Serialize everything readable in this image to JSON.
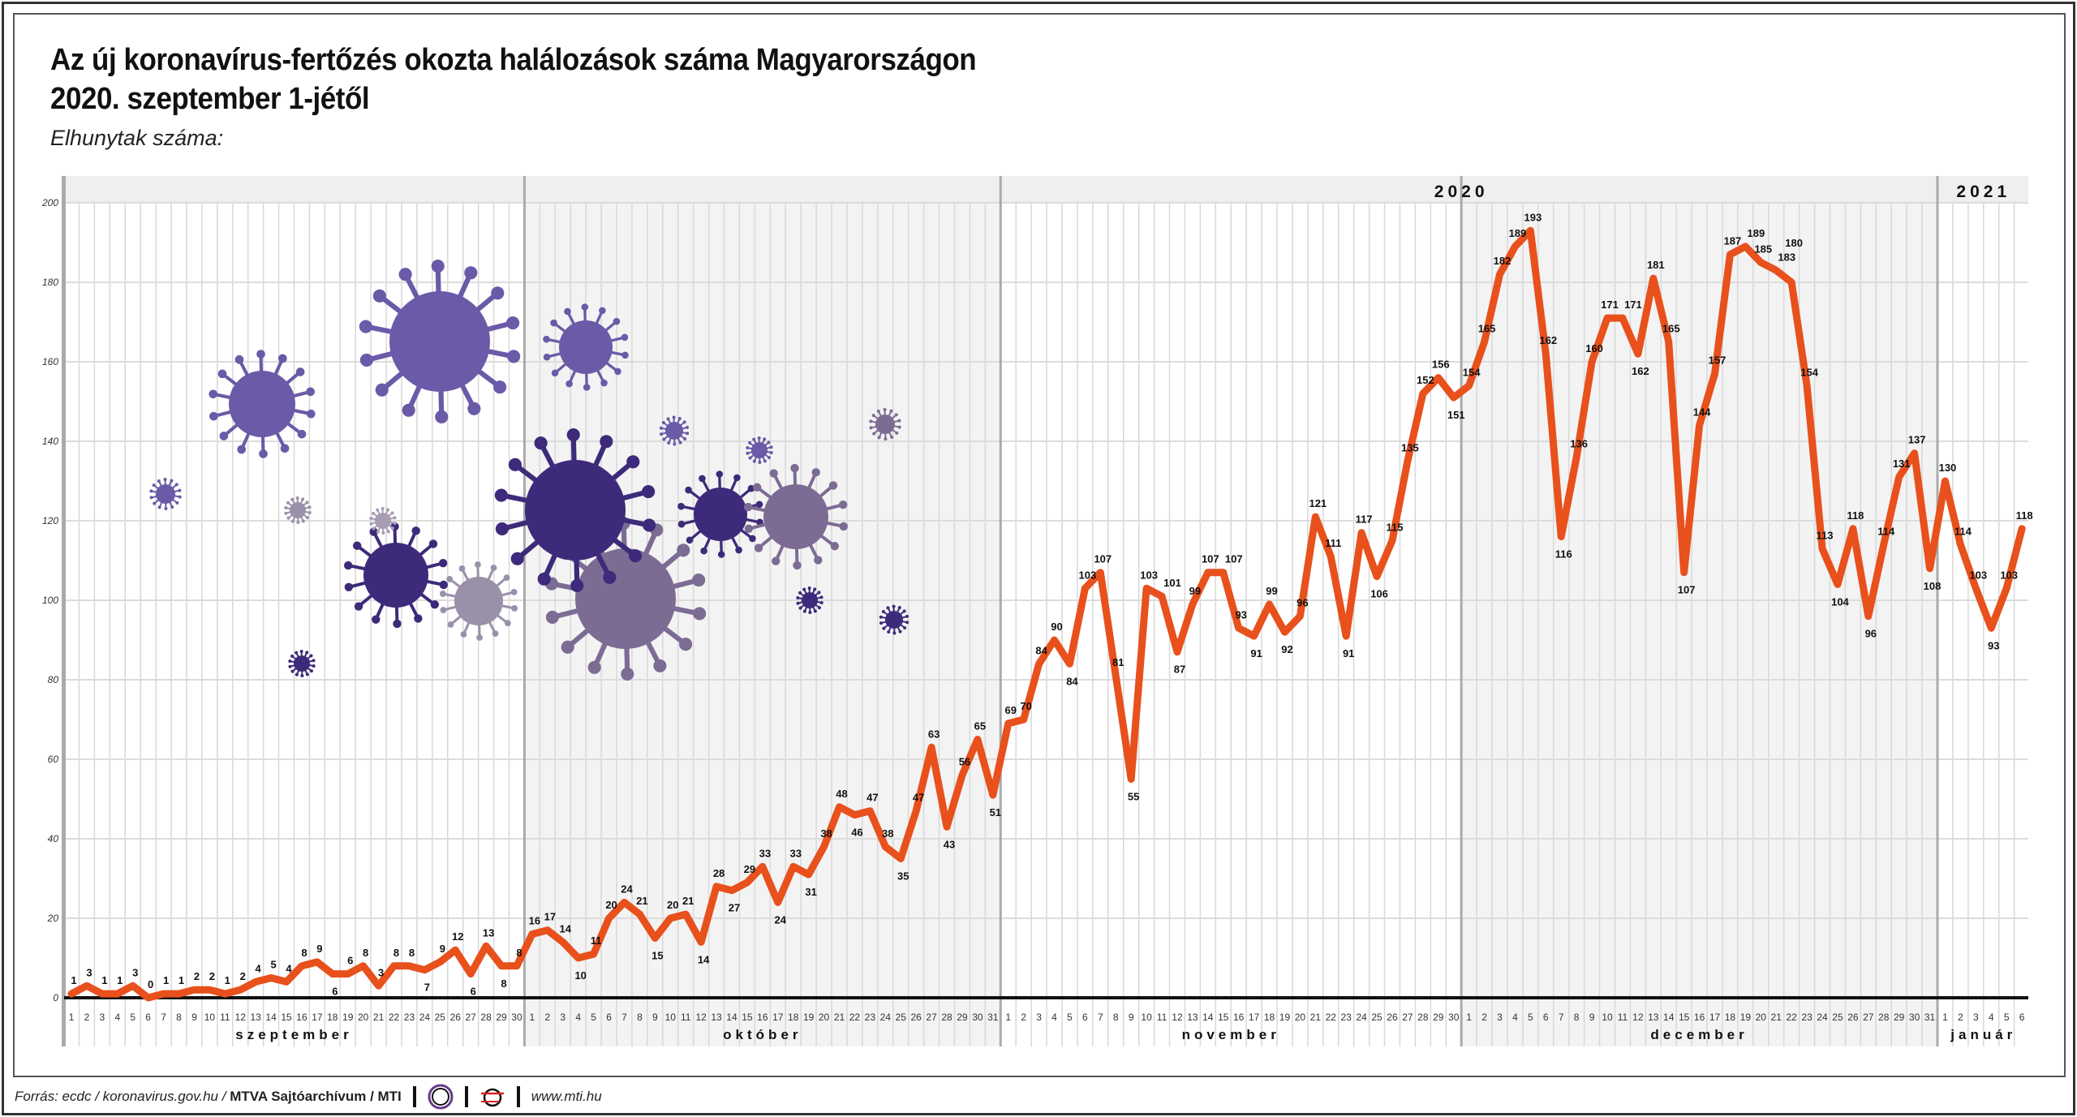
{
  "title_line1": "Az új koronavírus-fertőzés okozta halálozások száma Magyarországon",
  "title_line2": "2020. szeptember 1-jétől",
  "subtitle": "Elhunytak száma:",
  "footer": {
    "source_prefix": "Forrás: ecdc / koronavirus.gov.hu /",
    "source_bold": "MTVA Sajtóarchívum / MTI",
    "logo1_text": "MTVA",
    "website": "www.mti.hu"
  },
  "colors": {
    "line": "#e8501c",
    "virus_light": "#6a5aa8",
    "virus_dark": "#3d2a7a",
    "virus_grey": "#7c6c94",
    "shade": "#f3f3f3"
  },
  "chart_data": {
    "type": "line",
    "title": "Az új koronavírus-fertőzés okozta halálozások száma Magyarországon 2020. szeptember 1-jétől",
    "ylabel": "Elhunytak száma:",
    "ylim": [
      0,
      200
    ],
    "yticks": [
      0,
      20,
      40,
      60,
      80,
      100,
      120,
      140,
      160,
      180,
      200
    ],
    "grid": true,
    "years": [
      {
        "label": "2020",
        "from_month": 0,
        "to_month": 3
      },
      {
        "label": "2021",
        "from_month": 4,
        "to_month": 4
      }
    ],
    "months": [
      {
        "label": "szeptember",
        "days": 30,
        "shaded": false
      },
      {
        "label": "október",
        "days": 31,
        "shaded": true
      },
      {
        "label": "november",
        "days": 30,
        "shaded": false
      },
      {
        "label": "december",
        "days": 31,
        "shaded": true
      },
      {
        "label": "január",
        "days": 6,
        "shaded": false
      }
    ],
    "series": [
      {
        "name": "Elhunytak száma",
        "values": [
          1,
          3,
          1,
          1,
          3,
          0,
          1,
          1,
          2,
          2,
          1,
          2,
          4,
          5,
          4,
          8,
          9,
          6,
          6,
          8,
          3,
          8,
          8,
          7,
          9,
          12,
          6,
          13,
          8,
          8,
          16,
          17,
          14,
          10,
          11,
          20,
          24,
          21,
          15,
          20,
          21,
          14,
          28,
          27,
          29,
          33,
          24,
          33,
          31,
          38,
          48,
          46,
          47,
          38,
          35,
          47,
          63,
          43,
          56,
          65,
          51,
          69,
          70,
          84,
          90,
          84,
          103,
          107,
          81,
          55,
          103,
          101,
          87,
          99,
          107,
          107,
          93,
          91,
          99,
          92,
          96,
          121,
          111,
          91,
          117,
          106,
          115,
          135,
          152,
          156,
          151,
          154,
          165,
          182,
          189,
          193,
          162,
          116,
          136,
          160,
          171,
          171,
          162,
          181,
          165,
          107,
          144,
          157,
          187,
          189,
          185,
          183,
          180,
          154,
          113,
          104,
          118,
          96,
          114,
          131,
          137,
          108,
          130,
          114,
          103,
          93,
          103,
          118
        ]
      }
    ]
  }
}
